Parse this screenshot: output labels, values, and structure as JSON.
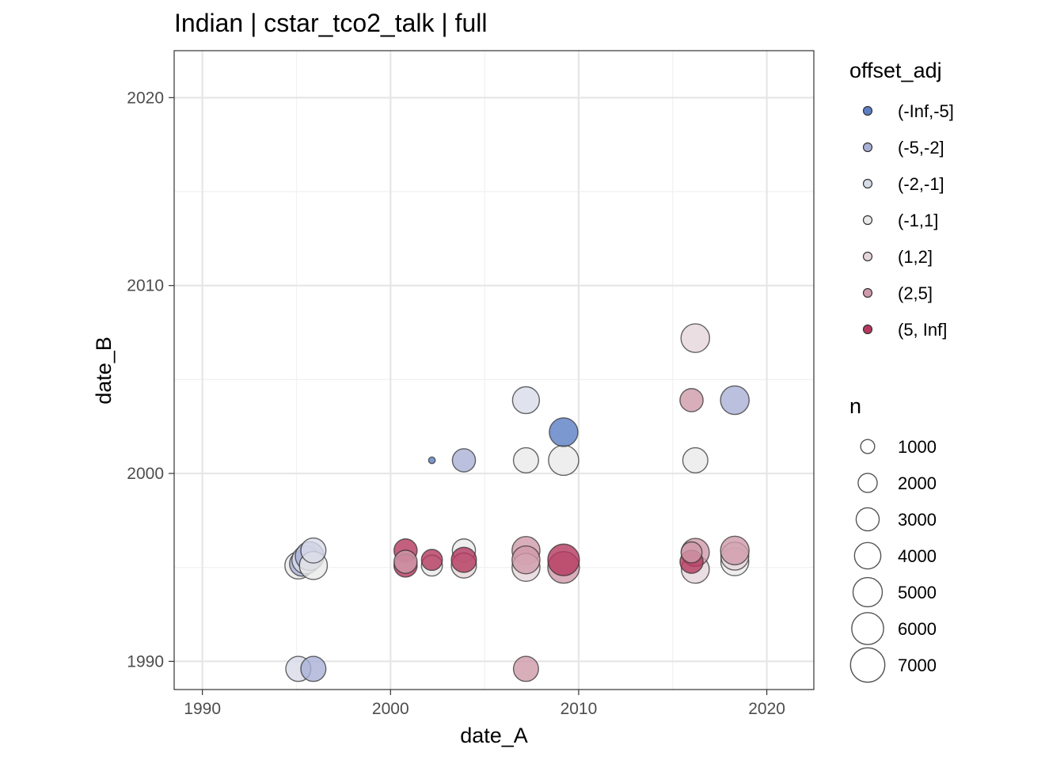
{
  "chart_data": {
    "type": "scatter",
    "title": "Indian | cstar_tco2_talk | full",
    "xlabel": "date_A",
    "ylabel": "date_B",
    "xlim": [
      1988.5,
      2022.5
    ],
    "ylim": [
      1988.5,
      2022.5
    ],
    "xticks": [
      1990,
      2000,
      2010,
      2020
    ],
    "yticks": [
      1990,
      2000,
      2010,
      2020
    ],
    "grid": true,
    "legend_color": {
      "title": "offset_adj",
      "entries": [
        {
          "label": "(-Inf,-5]",
          "color": "#5b7ec4"
        },
        {
          "label": "(-5,-2]",
          "color": "#a9b0d6"
        },
        {
          "label": "(-2,-1]",
          "color": "#d8dbe8"
        },
        {
          "label": "(-1,1]",
          "color": "#eaeaea"
        },
        {
          "label": "(1,2]",
          "color": "#e6d6db"
        },
        {
          "label": "(2,5]",
          "color": "#cf9aaa"
        },
        {
          "label": "(5, Inf]",
          "color": "#b5385f"
        }
      ]
    },
    "legend_size": {
      "title": "n",
      "entries": [
        {
          "label": "1000",
          "value": 1000
        },
        {
          "label": "2000",
          "value": 2000
        },
        {
          "label": "3000",
          "value": 3000
        },
        {
          "label": "4000",
          "value": 4000
        },
        {
          "label": "5000",
          "value": 5000
        },
        {
          "label": "6000",
          "value": 6000
        },
        {
          "label": "7000",
          "value": 7000
        }
      ]
    },
    "points": [
      {
        "x": 1995.1,
        "y": 1995.1,
        "n": 3500,
        "group": 3
      },
      {
        "x": 1995.3,
        "y": 1995.2,
        "n": 3000,
        "group": 1
      },
      {
        "x": 1995.5,
        "y": 1995.4,
        "n": 3800,
        "group": 2
      },
      {
        "x": 1995.7,
        "y": 1995.6,
        "n": 4000,
        "group": 1
      },
      {
        "x": 1995.9,
        "y": 1995.1,
        "n": 3800,
        "group": 3
      },
      {
        "x": 1995.9,
        "y": 1995.9,
        "n": 3000,
        "group": 2
      },
      {
        "x": 1995.1,
        "y": 1989.6,
        "n": 3000,
        "group": 2
      },
      {
        "x": 1995.9,
        "y": 1989.6,
        "n": 3000,
        "group": 1
      },
      {
        "x": 2000.8,
        "y": 1995.9,
        "n": 2500,
        "group": 6
      },
      {
        "x": 2000.8,
        "y": 1995.1,
        "n": 2500,
        "group": 6
      },
      {
        "x": 2000.8,
        "y": 1995.3,
        "n": 2500,
        "group": 5
      },
      {
        "x": 2002.2,
        "y": 1995.1,
        "n": 2000,
        "group": 3
      },
      {
        "x": 2002.2,
        "y": 1995.4,
        "n": 2000,
        "group": 6
      },
      {
        "x": 2002.2,
        "y": 2000.7,
        "n": 100,
        "group": 0
      },
      {
        "x": 2003.9,
        "y": 1995.9,
        "n": 2500,
        "group": 3
      },
      {
        "x": 2003.9,
        "y": 1995.1,
        "n": 3000,
        "group": 4
      },
      {
        "x": 2003.9,
        "y": 1995.4,
        "n": 3000,
        "group": 6
      },
      {
        "x": 2003.9,
        "y": 2000.7,
        "n": 2500,
        "group": 1
      },
      {
        "x": 2007.2,
        "y": 1995.9,
        "n": 3800,
        "group": 5
      },
      {
        "x": 2007.2,
        "y": 1995.0,
        "n": 3800,
        "group": 4
      },
      {
        "x": 2007.2,
        "y": 1995.4,
        "n": 3800,
        "group": 5
      },
      {
        "x": 2007.2,
        "y": 2000.7,
        "n": 3000,
        "group": 3
      },
      {
        "x": 2007.2,
        "y": 2003.9,
        "n": 3500,
        "group": 2
      },
      {
        "x": 2007.2,
        "y": 1989.6,
        "n": 3000,
        "group": 5
      },
      {
        "x": 2009.2,
        "y": 1995.0,
        "n": 5000,
        "group": 5
      },
      {
        "x": 2009.2,
        "y": 1995.4,
        "n": 5000,
        "group": 6
      },
      {
        "x": 2009.2,
        "y": 2000.7,
        "n": 4500,
        "group": 3
      },
      {
        "x": 2009.2,
        "y": 2002.2,
        "n": 4000,
        "group": 0
      },
      {
        "x": 2016.2,
        "y": 1994.9,
        "n": 3800,
        "group": 4
      },
      {
        "x": 2016.2,
        "y": 1995.8,
        "n": 3800,
        "group": 5
      },
      {
        "x": 2016.0,
        "y": 1995.3,
        "n": 2500,
        "group": 6
      },
      {
        "x": 2016.0,
        "y": 1995.8,
        "n": 2000,
        "group": 5
      },
      {
        "x": 2016.0,
        "y": 2003.9,
        "n": 2500,
        "group": 5
      },
      {
        "x": 2016.2,
        "y": 2000.7,
        "n": 3000,
        "group": 3
      },
      {
        "x": 2016.2,
        "y": 2007.2,
        "n": 4000,
        "group": 4
      },
      {
        "x": 2018.3,
        "y": 1995.3,
        "n": 3800,
        "group": 3
      },
      {
        "x": 2018.3,
        "y": 1995.6,
        "n": 3800,
        "group": 4
      },
      {
        "x": 2018.3,
        "y": 1995.9,
        "n": 4000,
        "group": 5
      },
      {
        "x": 2018.3,
        "y": 2003.9,
        "n": 4000,
        "group": 1
      }
    ]
  }
}
